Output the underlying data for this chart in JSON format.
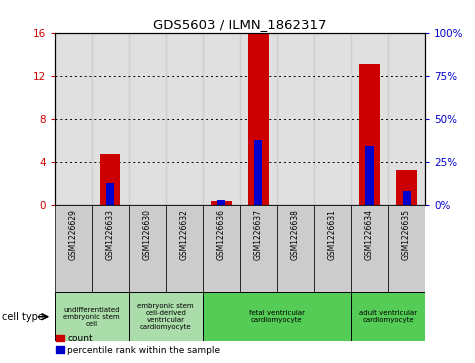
{
  "title": "GDS5603 / ILMN_1862317",
  "samples": [
    "GSM1226629",
    "GSM1226633",
    "GSM1226630",
    "GSM1226632",
    "GSM1226636",
    "GSM1226637",
    "GSM1226638",
    "GSM1226631",
    "GSM1226634",
    "GSM1226635"
  ],
  "count_values": [
    0.0,
    4.7,
    0.0,
    0.0,
    0.35,
    16.0,
    0.0,
    0.0,
    13.1,
    3.3
  ],
  "percentile_values": [
    0.0,
    13.0,
    0.0,
    0.0,
    3.0,
    38.0,
    0.0,
    0.0,
    34.0,
    8.0
  ],
  "ylim_left": [
    0,
    16
  ],
  "ylim_right": [
    0,
    100
  ],
  "yticks_left": [
    0,
    4,
    8,
    12,
    16
  ],
  "yticks_right": [
    0,
    25,
    50,
    75,
    100
  ],
  "ytick_labels_left": [
    "0",
    "4",
    "8",
    "12",
    "16"
  ],
  "ytick_labels_right": [
    "0%",
    "25%",
    "50%",
    "75%",
    "100%"
  ],
  "bar_width": 0.55,
  "blue_bar_width": 0.22,
  "red_color": "#cc0000",
  "blue_color": "#0000cc",
  "cell_types": [
    {
      "label": "undifferentiated\nembryonic stem\ncell",
      "cols": [
        0,
        1
      ],
      "color": "#aaddaa"
    },
    {
      "label": "embryonic stem\ncell-derived\nventricular\ncardiomyocyte",
      "cols": [
        2,
        3
      ],
      "color": "#aaddaa"
    },
    {
      "label": "fetal ventricular\ncardiomyocyte",
      "cols": [
        4,
        5,
        6,
        7
      ],
      "color": "#55cc55"
    },
    {
      "label": "adult ventricular\ncardiomyocyte",
      "cols": [
        8,
        9
      ],
      "color": "#55cc55"
    }
  ],
  "cell_type_label": "cell type",
  "legend_count": "count",
  "legend_percentile": "percentile rank within the sample",
  "col_bg_color": "#cccccc",
  "axis_bg_color": "#ffffff"
}
